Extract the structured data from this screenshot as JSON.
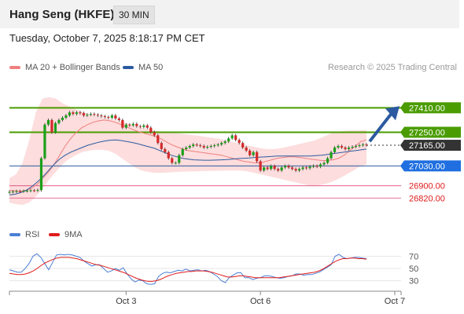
{
  "header": {
    "title": "Hang Seng (HKFE)",
    "interval": "30 MIN"
  },
  "datetime": "Tuesday, October 7, 2025 8:18:17 PM CET",
  "legend": {
    "items": [
      {
        "label": "MA 20 + Bollinger Bands",
        "color": "#f08080"
      },
      {
        "label": "MA 50",
        "color": "#2c5aa0"
      }
    ]
  },
  "credit": "Research © 2025 Trading Central",
  "rsi_legend": {
    "items": [
      {
        "label": "RSI",
        "color": "#4a7fd6"
      },
      {
        "label": "9MA",
        "color": "#e01b1b"
      }
    ]
  },
  "colors": {
    "resistance": "#4a9c00",
    "pivot": "#2c5aa0",
    "support": "#e0457b",
    "last_price_tag": "#333333",
    "arrow": "#2c5aa0"
  },
  "chart_data": [
    {
      "type": "candlestick",
      "y_range": [
        26770,
        27540
      ],
      "x_tick_labels": [
        {
          "label": "Oct 3",
          "index": 33
        },
        {
          "label": "Oct 6",
          "index": 71
        },
        {
          "label": "Oct 7",
          "index": 109
        }
      ],
      "levels": [
        {
          "value": 27410,
          "label": "27410.00",
          "kind": "resistance"
        },
        {
          "value": 27250,
          "label": "27250.00",
          "kind": "resistance"
        },
        {
          "value": 27165,
          "label": "27165.00",
          "kind": "last"
        },
        {
          "value": 27030,
          "label": "27030.00",
          "kind": "pivot"
        },
        {
          "value": 26900,
          "label": "26900.00",
          "kind": "support"
        },
        {
          "value": 26820,
          "label": "26820.00",
          "kind": "support"
        }
      ],
      "closes": [
        26860,
        26862,
        26865,
        26864,
        26866,
        26868,
        26870,
        26869,
        26872,
        27080,
        27300,
        27330,
        27250,
        27310,
        27330,
        27345,
        27360,
        27380,
        27370,
        27380,
        27375,
        27360,
        27365,
        27370,
        27365,
        27360,
        27355,
        27350,
        27345,
        27360,
        27340,
        27330,
        27280,
        27300,
        27295,
        27305,
        27290,
        27285,
        27295,
        27280,
        27250,
        27230,
        27180,
        27140,
        27120,
        27080,
        27050,
        27050,
        27100,
        27140,
        27150,
        27160,
        27170,
        27165,
        27160,
        27150,
        27155,
        27160,
        27165,
        27170,
        27180,
        27190,
        27210,
        27230,
        27200,
        27180,
        27150,
        27130,
        27100,
        27120,
        27060,
        27000,
        27020,
        27010,
        27030,
        27010,
        27000,
        27020,
        27030,
        27020,
        27010,
        27000,
        27010,
        27020,
        27015,
        27025,
        27030,
        27025,
        27040,
        27050,
        27080,
        27120,
        27150,
        27160,
        27150,
        27140,
        27150,
        27155,
        27160,
        27165,
        27170,
        27165
      ],
      "series": [
        {
          "name": "MA 20",
          "values": [
            26870,
            26867,
            26865,
            26870,
            26885,
            26910,
            26950,
            26990,
            27040,
            27100,
            27160,
            27210,
            27250,
            27280,
            27300,
            27315,
            27325,
            27330,
            27325,
            27315,
            27300,
            27285,
            27270,
            27255,
            27245,
            27235,
            27225,
            27210,
            27190,
            27170,
            27155,
            27140,
            27130,
            27125,
            27120,
            27115,
            27110,
            27105,
            27100,
            27090,
            27080,
            27070,
            27060,
            27055,
            27050,
            27050,
            27060,
            27070,
            27080,
            27085,
            27090,
            27090,
            27085,
            27080,
            27075,
            27070,
            27065,
            27065,
            27070,
            27080,
            27100,
            27130,
            27160,
            27190,
            27200
          ]
        },
        {
          "name": "MA 50",
          "values": [
            26840,
            26845,
            26855,
            26870,
            26895,
            26925,
            26960,
            27000,
            27040,
            27075,
            27100,
            27120,
            27135,
            27150,
            27165,
            27175,
            27185,
            27192,
            27198,
            27200,
            27196,
            27190,
            27183,
            27175,
            27165,
            27155,
            27145,
            27130,
            27115,
            27100,
            27090,
            27080,
            27075,
            27070,
            27068,
            27067,
            27067,
            27068,
            27070,
            27072,
            27075,
            27078,
            27080,
            27082,
            27085,
            27088,
            27090,
            27092,
            27095,
            27095,
            27095,
            27095,
            27095,
            27095,
            27095,
            27098,
            27100,
            27105,
            27110,
            27115,
            27120,
            27125,
            27130,
            27135,
            27140
          ]
        },
        {
          "name": "Bollinger Upper",
          "values": [
            26950,
            26975,
            27050,
            27200,
            27380,
            27470,
            27480,
            27470,
            27440,
            27420,
            27400,
            27385,
            27370,
            27360,
            27350,
            27340,
            27330,
            27320,
            27305,
            27290,
            27280,
            27270,
            27262,
            27255,
            27250,
            27245,
            27240,
            27235,
            27230,
            27225,
            27218,
            27212,
            27205,
            27195,
            27185,
            27175,
            27165,
            27155,
            27145,
            27140,
            27140,
            27145,
            27155,
            27165,
            27175,
            27185,
            27195,
            27210,
            27230,
            27250,
            27255,
            27260,
            27262,
            27263,
            27265
          ]
        },
        {
          "name": "Bollinger Lower",
          "values": [
            26790,
            26780,
            26775,
            26790,
            26830,
            26880,
            26940,
            26990,
            27040,
            27075,
            27100,
            27120,
            27130,
            27135,
            27135,
            27130,
            27110,
            27080,
            27050,
            27020,
            27000,
            26990,
            26985,
            26985,
            26987,
            26990,
            26992,
            26994,
            26995,
            26996,
            26997,
            26998,
            26999,
            27000,
            27000,
            27000,
            26995,
            26985,
            26975,
            26965,
            26955,
            26945,
            26935,
            26925,
            26915,
            26905,
            26900,
            26905,
            26915,
            26930,
            26950,
            26975,
            27000,
            27025,
            27040
          ]
        }
      ]
    },
    {
      "type": "line",
      "y_range": [
        18,
        82
      ],
      "y_ticks": [
        70,
        50,
        30
      ],
      "series": [
        {
          "name": "RSI",
          "values": [
            48,
            46,
            44,
            44,
            50,
            58,
            70,
            74,
            68,
            58,
            48,
            60,
            72,
            73,
            72,
            73,
            72,
            70,
            68,
            62,
            58,
            54,
            56,
            56,
            50,
            44,
            46,
            50,
            47,
            51,
            41,
            33,
            28,
            31,
            30,
            25,
            24,
            25,
            37,
            42,
            44,
            43,
            45,
            47,
            46,
            49,
            46,
            47,
            48,
            46,
            47,
            45,
            41,
            37,
            30,
            27,
            35,
            39,
            43,
            43,
            35,
            35,
            32,
            34,
            35,
            38,
            38,
            37,
            35,
            34,
            35,
            37,
            38,
            41,
            41,
            39,
            40,
            40,
            42,
            44,
            48,
            52,
            56,
            70,
            73,
            68,
            66,
            67,
            68,
            68,
            67,
            66
          ]
        },
        {
          "name": "9MA",
          "values": [
            42,
            41,
            40,
            40,
            41,
            43,
            46,
            50,
            55,
            59,
            62,
            65,
            67,
            68,
            68,
            68,
            67,
            66,
            64,
            62,
            60,
            58,
            56,
            55,
            53,
            51,
            49,
            47,
            45,
            43,
            40,
            37,
            34,
            32,
            30,
            29,
            29,
            30,
            32,
            35,
            38,
            40,
            42,
            43,
            44,
            45,
            45,
            46,
            46,
            46,
            45,
            44,
            42,
            40,
            38,
            36,
            36,
            37,
            38,
            38,
            37,
            36,
            35,
            35,
            35,
            35,
            35,
            35,
            35,
            36,
            37,
            38,
            39,
            40,
            41,
            42,
            43,
            44,
            46,
            49,
            53,
            57,
            61,
            64,
            66,
            66,
            67,
            67,
            66,
            66,
            65
          ]
        }
      ]
    }
  ]
}
